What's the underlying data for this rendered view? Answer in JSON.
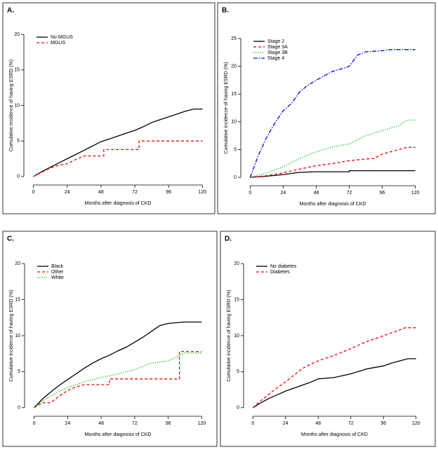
{
  "chart_data": [
    {
      "type": "line",
      "title": "A.",
      "xlabel": "Months after diagnosis of CKD",
      "ylabel": "Cumulative incidence of having ESRD (%)",
      "xlim": [
        -4.8,
        124.8
      ],
      "ylim": [
        -0.8,
        20.8
      ],
      "xticks": [
        0,
        24,
        48,
        72,
        96,
        120
      ],
      "yticks": [
        0,
        5,
        10,
        15,
        20
      ],
      "series": [
        {
          "name": "No MGUS",
          "color": "#000000",
          "linestyle": "solid",
          "x": [
            0,
            6,
            12,
            18,
            24,
            30,
            36,
            42,
            48,
            54,
            60,
            66,
            72,
            78,
            84,
            90,
            96,
            102,
            108,
            114,
            120
          ],
          "values": [
            0,
            0.7,
            1.3,
            1.9,
            2.5,
            3.1,
            3.7,
            4.3,
            4.9,
            5.3,
            5.7,
            6.1,
            6.5,
            7.0,
            7.6,
            8.0,
            8.4,
            8.8,
            9.2,
            9.5,
            9.5
          ]
        },
        {
          "name": "MGUS",
          "color": "#ff0000",
          "linestyle": "dashed",
          "x": [
            0,
            6,
            12,
            18,
            24,
            30,
            36,
            50,
            50,
            75,
            75,
            120
          ],
          "values": [
            0,
            0.6,
            1.2,
            1.6,
            1.8,
            2.4,
            2.9,
            2.9,
            3.8,
            3.8,
            5.0,
            5.0
          ]
        }
      ]
    },
    {
      "type": "line",
      "title": "B.",
      "xlabel": "Months after diagnosis of CKD",
      "ylabel": "Cumulative incidence of having ESRD (%)",
      "xlim": [
        -4.8,
        124.8
      ],
      "ylim": [
        -1,
        26
      ],
      "xticks": [
        0,
        24,
        48,
        72,
        96,
        120
      ],
      "yticks": [
        0,
        5,
        10,
        15,
        20,
        25
      ],
      "series": [
        {
          "name": "Stage 2",
          "color": "#000000",
          "linestyle": "solid",
          "x": [
            0,
            12,
            24,
            36,
            48,
            72,
            72,
            120
          ],
          "values": [
            0,
            0.2,
            0.5,
            0.9,
            1.0,
            1.0,
            1.2,
            1.2
          ]
        },
        {
          "name": "Stage 3A",
          "color": "#ff0000",
          "linestyle": "dashed",
          "x": [
            0,
            12,
            24,
            36,
            48,
            60,
            72,
            84,
            90,
            96,
            108,
            114,
            120
          ],
          "values": [
            0,
            0.3,
            0.8,
            1.5,
            2.1,
            2.5,
            3.0,
            3.3,
            3.4,
            4.2,
            5.0,
            5.4,
            5.4
          ]
        },
        {
          "name": "Stage 3B",
          "color": "#00c000",
          "linestyle": "dotted",
          "x": [
            0,
            12,
            24,
            36,
            48,
            60,
            72,
            84,
            96,
            108,
            114,
            120
          ],
          "values": [
            0,
            0.8,
            1.9,
            3.4,
            4.6,
            5.5,
            6.0,
            7.5,
            8.4,
            9.3,
            10.3,
            10.3
          ]
        },
        {
          "name": "Stage 4",
          "color": "#0000ff",
          "linestyle": "dashdot",
          "x": [
            0,
            6,
            12,
            18,
            24,
            30,
            36,
            42,
            48,
            54,
            60,
            66,
            72,
            78,
            84,
            96,
            102,
            120
          ],
          "values": [
            0,
            4,
            7.2,
            9.8,
            12,
            13.3,
            15.4,
            16.6,
            17.5,
            18.3,
            19.1,
            19.5,
            20,
            22,
            22.6,
            22.8,
            23,
            23
          ]
        }
      ]
    },
    {
      "type": "line",
      "title": "C.",
      "xlabel": "Months after diagnosis of CKD",
      "ylabel": "Cumulative incidence of having ESRD (%)",
      "xlim": [
        -4.8,
        124.8
      ],
      "ylim": [
        -0.8,
        20.8
      ],
      "xticks": [
        0,
        24,
        48,
        72,
        96,
        120
      ],
      "yticks": [
        0,
        5,
        10,
        15,
        20
      ],
      "series": [
        {
          "name": "Black",
          "color": "#000000",
          "linestyle": "solid",
          "x": [
            0,
            6,
            12,
            18,
            24,
            30,
            36,
            42,
            48,
            54,
            60,
            66,
            72,
            78,
            84,
            90,
            96,
            102,
            108,
            120
          ],
          "values": [
            0,
            1.2,
            2.2,
            3.1,
            3.9,
            4.7,
            5.5,
            6.2,
            6.8,
            7.3,
            7.9,
            8.4,
            9.1,
            9.8,
            10.6,
            11.4,
            11.7,
            11.8,
            11.9,
            11.9
          ]
        },
        {
          "name": "Other",
          "color": "#ff0000",
          "linestyle": "dashed",
          "x": [
            0,
            6,
            12,
            18,
            24,
            30,
            36,
            54,
            54,
            104,
            104,
            120
          ],
          "values": [
            0,
            0.7,
            0.7,
            1.6,
            2.4,
            2.9,
            3.2,
            3.2,
            4.0,
            4.0,
            7.8,
            7.8
          ]
        },
        {
          "name": "White",
          "color": "#00c000",
          "linestyle": "dotted",
          "x": [
            0,
            6,
            12,
            18,
            24,
            36,
            48,
            60,
            72,
            84,
            96,
            108,
            120
          ],
          "values": [
            0,
            0.9,
            1.6,
            2.3,
            2.8,
            3.6,
            4.2,
            4.7,
            5.3,
            6.2,
            6.5,
            7.6,
            7.6
          ]
        }
      ]
    },
    {
      "type": "line",
      "title": "D.",
      "xlabel": "Months after diagnosis of CKD",
      "ylabel": "Cumulative incidence of having ESRD (%)",
      "xlim": [
        -4.8,
        124.8
      ],
      "ylim": [
        -0.8,
        20.8
      ],
      "xticks": [
        0,
        24,
        48,
        72,
        96,
        120
      ],
      "yticks": [
        0,
        5,
        10,
        15,
        20
      ],
      "series": [
        {
          "name": "No diabetes",
          "color": "#000000",
          "linestyle": "solid",
          "x": [
            0,
            6,
            12,
            18,
            24,
            30,
            36,
            42,
            48,
            60,
            72,
            84,
            96,
            102,
            114,
            120
          ],
          "values": [
            0,
            0.7,
            1.3,
            1.8,
            2.3,
            2.7,
            3.1,
            3.5,
            4.0,
            4.2,
            4.7,
            5.4,
            5.8,
            6.2,
            6.8,
            6.8
          ]
        },
        {
          "name": "Diabetes",
          "color": "#ff0000",
          "linestyle": "dashed",
          "x": [
            0,
            6,
            12,
            18,
            24,
            30,
            36,
            42,
            48,
            60,
            72,
            84,
            96,
            108,
            112,
            120
          ],
          "values": [
            0,
            1.0,
            1.9,
            2.8,
            3.6,
            4.5,
            5.4,
            6.0,
            6.5,
            7.3,
            8.2,
            9.2,
            10.0,
            10.8,
            11.1,
            11.1
          ]
        }
      ]
    }
  ]
}
